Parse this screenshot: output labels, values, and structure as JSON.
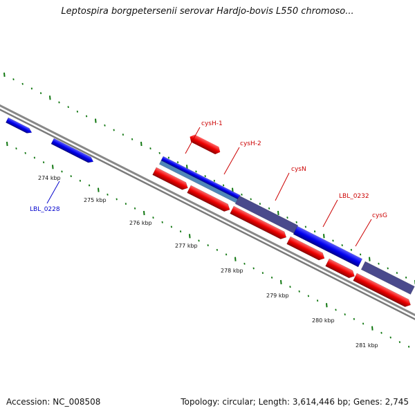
{
  "title": "Leptospira borgpetersenii serovar Hardjo-bovis L550 chromoso...",
  "footer": {
    "accession": "Accession: NC_008508",
    "summary": "Topology: circular; Length: 3,614,446 bp; Genes: 2,745"
  },
  "colors": {
    "forward_gene": "#0000ee",
    "reverse_gene": "#ee0000",
    "forward_label": "#0000cc",
    "reverse_label": "#cc0000",
    "overlap_dark": "#4a4a8c",
    "overlap_light": "#4f86b8",
    "backbone": "#888888",
    "tick": "#117711"
  },
  "scale": {
    "tick_labels": [
      {
        "kbp": 274,
        "label": "274 kbp"
      },
      {
        "kbp": 275,
        "label": "275 kbp"
      },
      {
        "kbp": 276,
        "label": "276 kbp"
      },
      {
        "kbp": 277,
        "label": "277 kbp"
      },
      {
        "kbp": 278,
        "label": "278 kbp"
      },
      {
        "kbp": 279,
        "label": "279 kbp"
      },
      {
        "kbp": 280,
        "label": "280 kbp"
      },
      {
        "kbp": 281,
        "label": "281 kbp"
      }
    ]
  },
  "gene_labels": [
    {
      "text": "LBL_0228",
      "strand": "forward"
    },
    {
      "text": "cysH-1",
      "strand": "reverse"
    },
    {
      "text": "cysH-2",
      "strand": "reverse"
    },
    {
      "text": "cysN",
      "strand": "reverse"
    },
    {
      "text": "LBL_0232",
      "strand": "reverse"
    },
    {
      "text": "cysG",
      "strand": "reverse"
    }
  ]
}
